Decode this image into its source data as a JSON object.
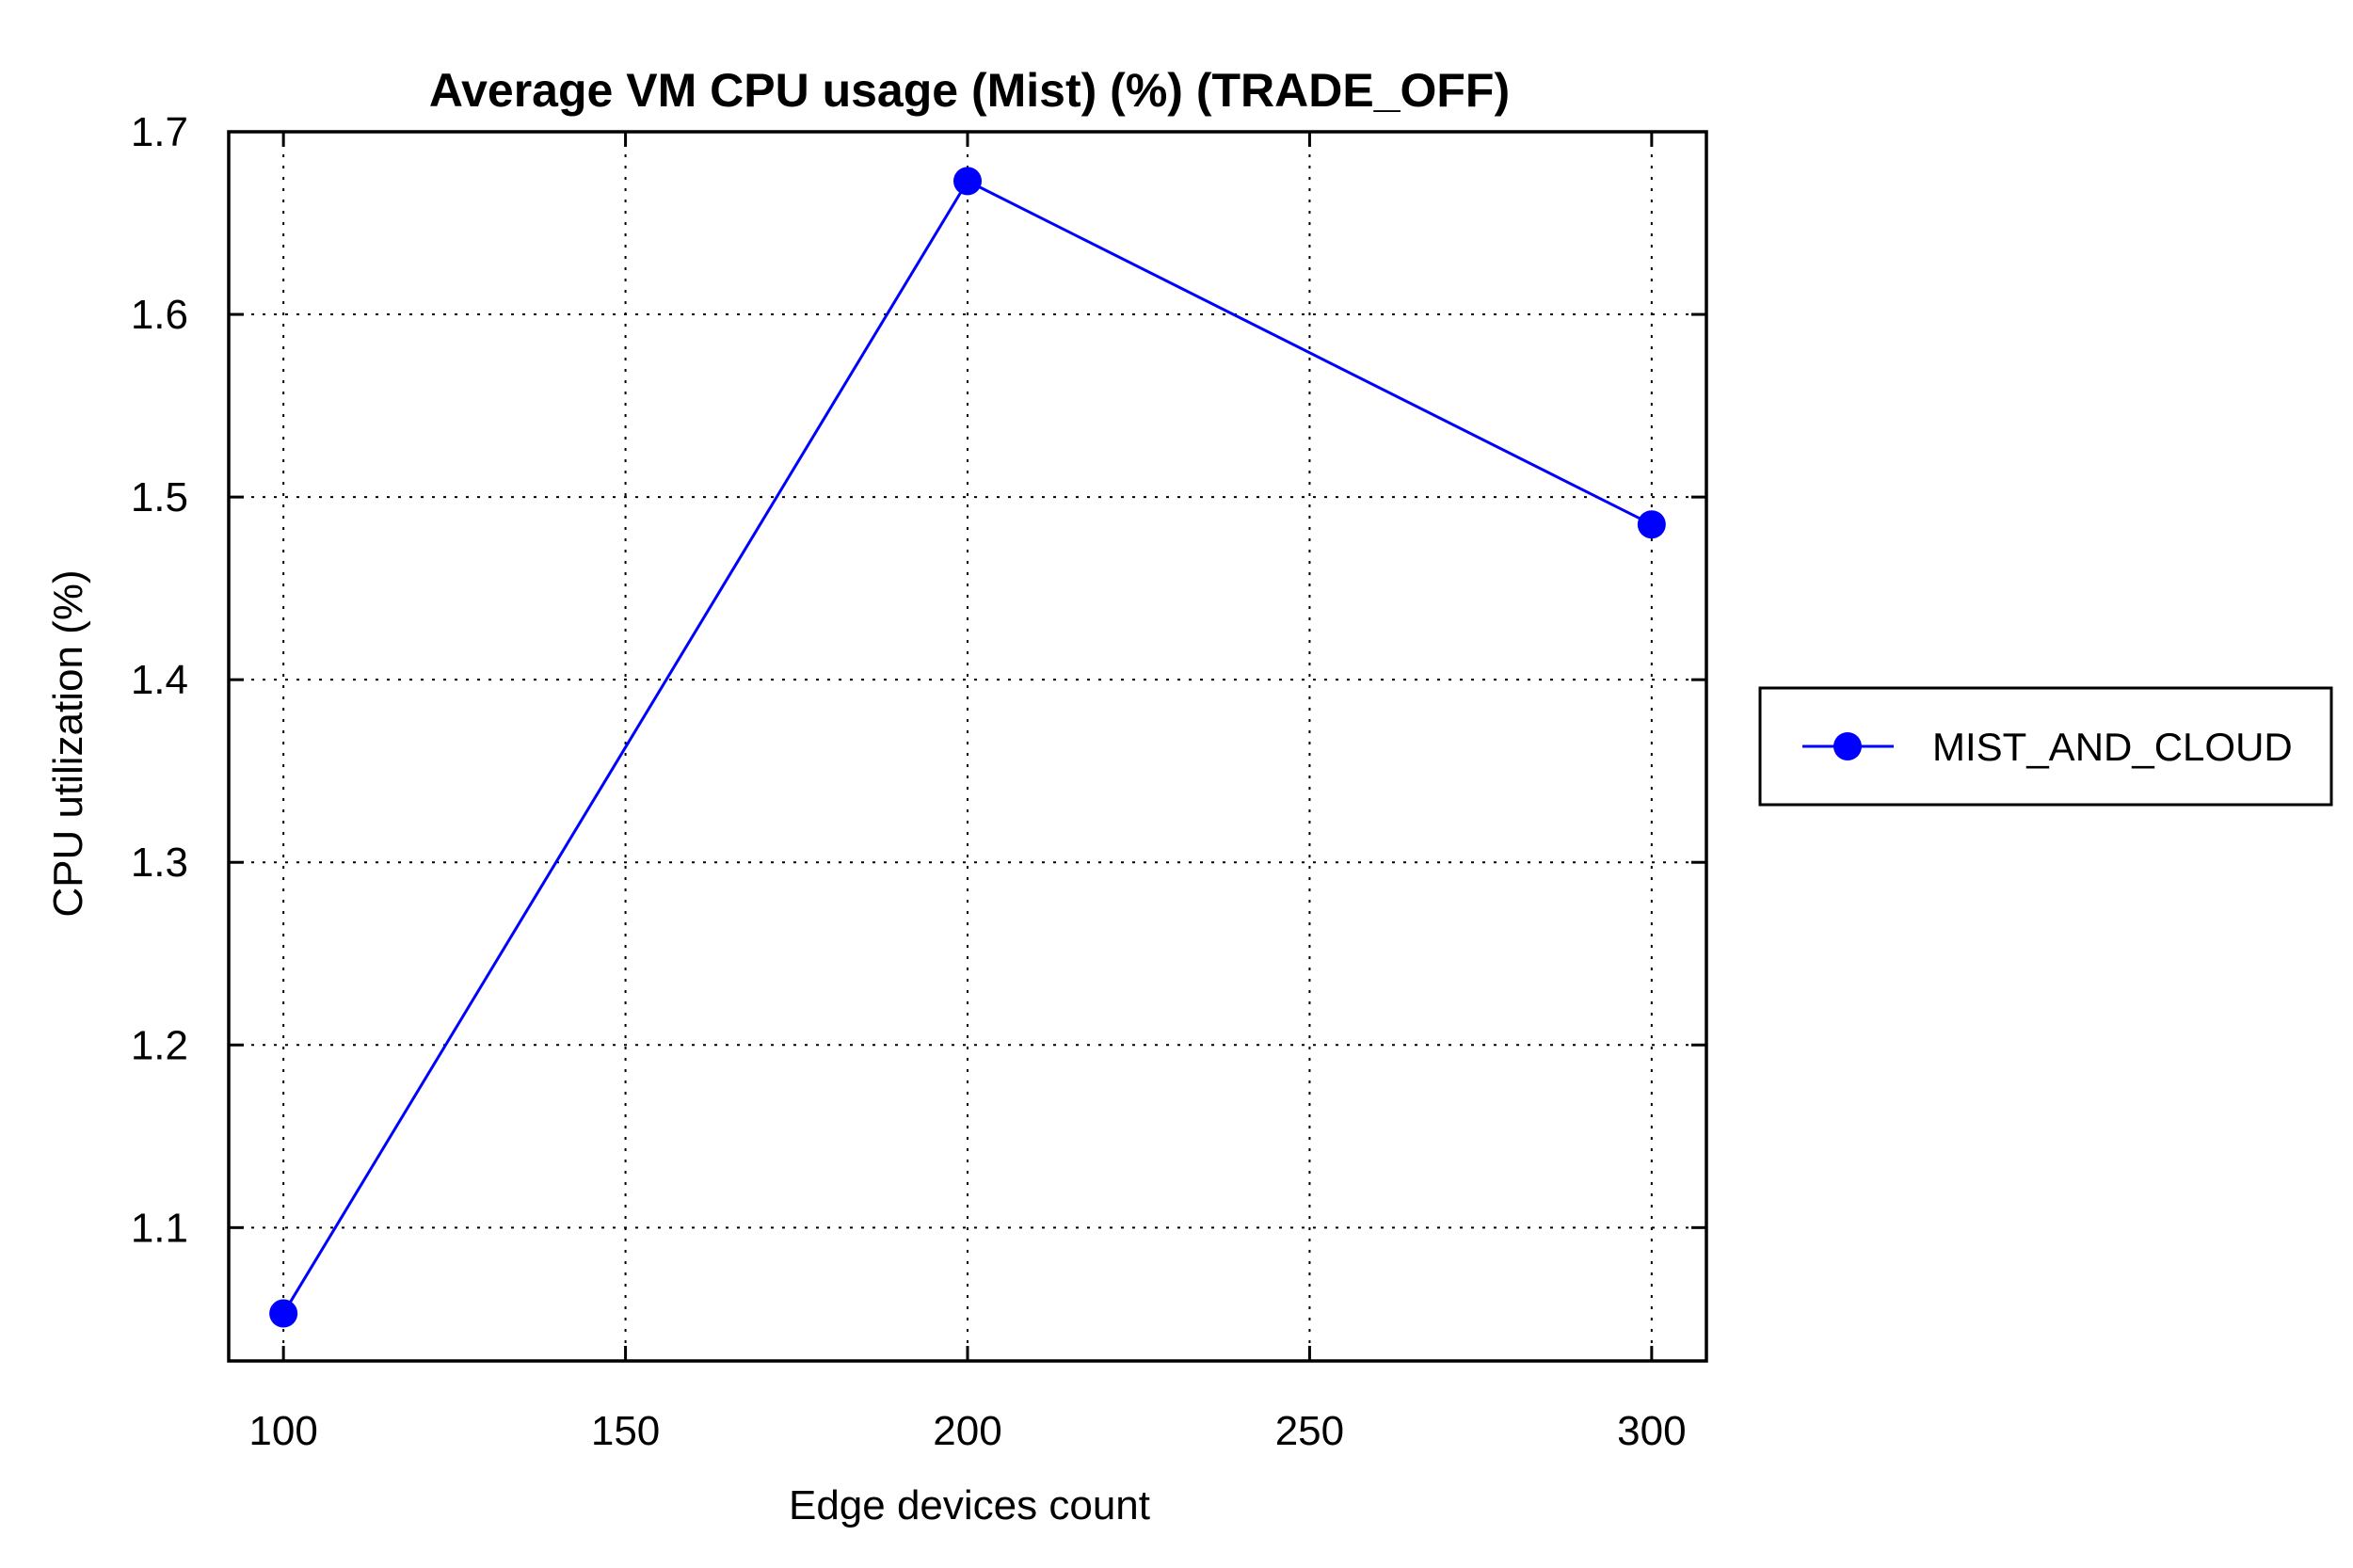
{
  "chart_data": {
    "type": "line",
    "title": "Average VM CPU usage (Mist) (%) (TRADE_OFF)",
    "xlabel": "Edge devices count",
    "ylabel": "CPU utilization (%)",
    "x": [
      100,
      200,
      300
    ],
    "series": [
      {
        "name": "MIST_AND_CLOUD",
        "values": [
          1.053,
          1.673,
          1.485
        ],
        "color": "#0000ff",
        "marker": "circle"
      }
    ],
    "xlim": [
      92,
      308
    ],
    "ylim": [
      1.027,
      1.7
    ],
    "x_ticks": [
      "100",
      "150",
      "200",
      "250",
      "300"
    ],
    "y_ticks": [
      "1.1",
      "1.2",
      "1.3",
      "1.4",
      "1.5",
      "1.6",
      "1.7"
    ],
    "grid": true,
    "legend_position": "right"
  }
}
